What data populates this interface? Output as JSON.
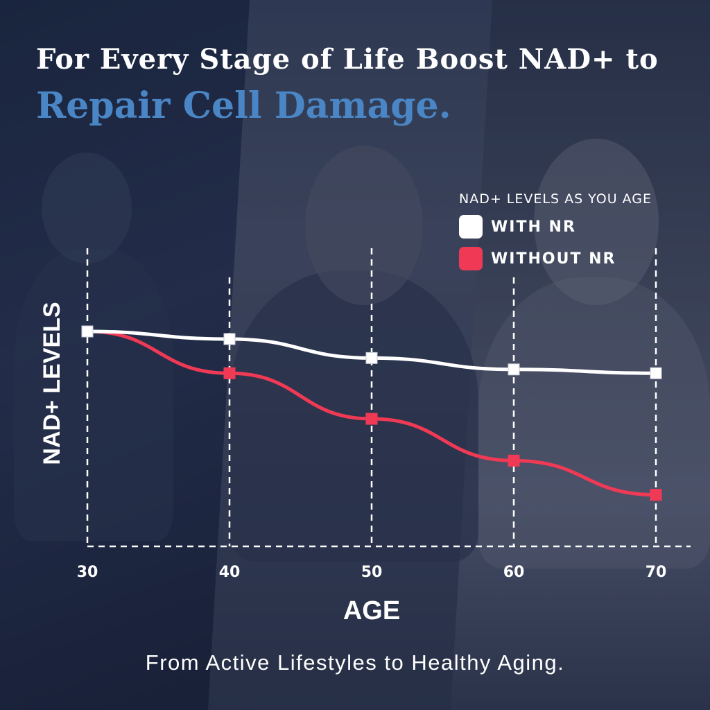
{
  "headline": {
    "line1": "For Every Stage of Life  Boost NAD+ to",
    "line2": "Repair Cell Damage.",
    "line2_color": "#4a86c5"
  },
  "legend": {
    "title": "NAD+ LEVELS AS YOU AGE",
    "items": [
      {
        "label": "WITH NR",
        "color": "#ffffff"
      },
      {
        "label": "WITHOUT NR",
        "color": "#f03a55"
      }
    ]
  },
  "chart_data": {
    "type": "line",
    "x": [
      30,
      40,
      50,
      60,
      70
    ],
    "xlabel": "AGE",
    "ylabel": "NAD+ LEVELS",
    "xlim": [
      30,
      70
    ],
    "ylim": [
      0,
      100
    ],
    "grid": "vertical dashed lines at each age",
    "legend_position": "top-right",
    "series": [
      {
        "name": "WITH NR",
        "color": "#ffffff",
        "values": [
          100,
          98,
          93,
          90,
          89
        ]
      },
      {
        "name": "WITHOUT NR",
        "color": "#f03a55",
        "values": [
          100,
          89,
          77,
          66,
          57
        ]
      }
    ]
  },
  "footer": {
    "text": "From Active Lifestyles to Healthy Aging."
  }
}
